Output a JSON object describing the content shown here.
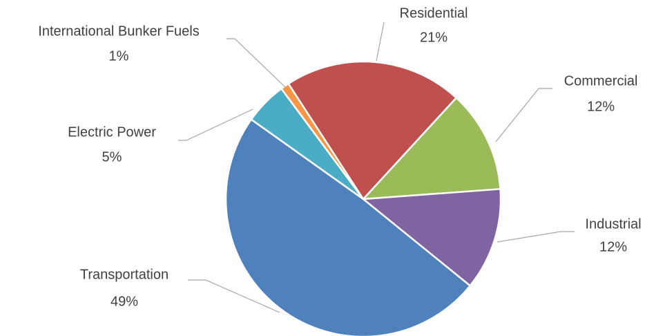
{
  "chart_data": {
    "type": "pie",
    "categories": [
      "Residential",
      "Commercial",
      "Industrial",
      "Transportation",
      "Electric Power",
      "International Bunker Fuels"
    ],
    "values": [
      21,
      12,
      12,
      49,
      5,
      1
    ],
    "value_labels": [
      "21%",
      "12%",
      "12%",
      "49%",
      "5%",
      "1%"
    ],
    "colors": [
      "#c0504d",
      "#9bbb59",
      "#8064a2",
      "#4f81bd",
      "#4bacc6",
      "#f79646"
    ]
  }
}
